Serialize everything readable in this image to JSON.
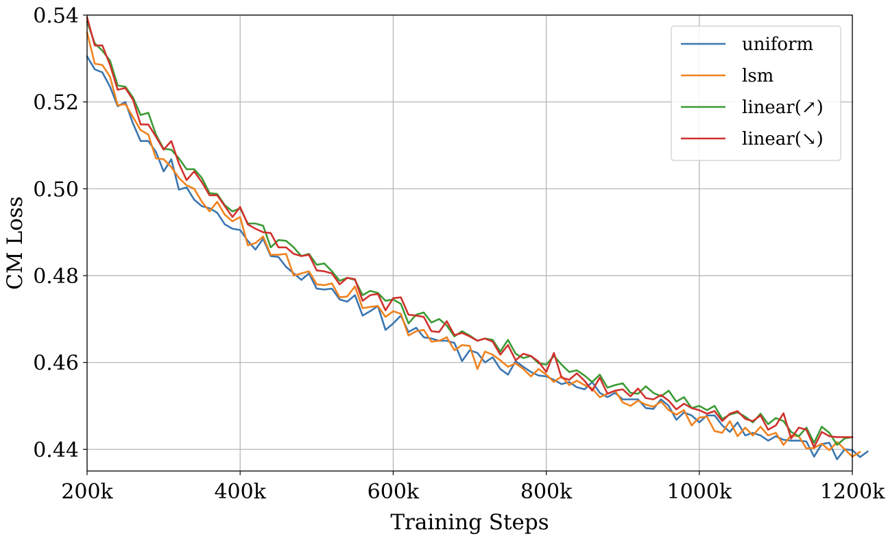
{
  "chart_data": {
    "type": "line",
    "title": "",
    "xlabel": "Training Steps",
    "ylabel": "CM Loss",
    "xlim": [
      200000,
      1200000
    ],
    "ylim": [
      0.435,
      0.54
    ],
    "xticks": [
      200000,
      400000,
      600000,
      800000,
      1000000,
      1200000
    ],
    "xtick_labels": [
      "200k",
      "400k",
      "600k",
      "800k",
      "1000k",
      "1200k"
    ],
    "yticks": [
      0.44,
      0.46,
      0.48,
      0.5,
      0.52,
      0.54
    ],
    "ytick_labels": [
      "0.44",
      "0.46",
      "0.48",
      "0.50",
      "0.52",
      "0.54"
    ],
    "grid": true,
    "legend_position": "top-right",
    "x_start": 200000,
    "x_step": 10000,
    "series": [
      {
        "name": "uniform",
        "color": "#3a76b0",
        "values": [
          0.5305,
          0.5275,
          0.5268,
          0.5235,
          0.519,
          0.52,
          0.515,
          0.511,
          0.511,
          0.5085,
          0.504,
          0.5068,
          0.4998,
          0.5003,
          0.4975,
          0.496,
          0.4955,
          0.4945,
          0.4918,
          0.4908,
          0.4905,
          0.488,
          0.486,
          0.4885,
          0.4845,
          0.4843,
          0.482,
          0.4805,
          0.479,
          0.4805,
          0.477,
          0.4768,
          0.477,
          0.4745,
          0.474,
          0.4755,
          0.4708,
          0.4718,
          0.473,
          0.4675,
          0.469,
          0.4708,
          0.467,
          0.468,
          0.4658,
          0.4655,
          0.465,
          0.465,
          0.4645,
          0.4603,
          0.4628,
          0.4622,
          0.46,
          0.4612,
          0.4585,
          0.4572,
          0.4603,
          0.459,
          0.4578,
          0.457,
          0.4568,
          0.456,
          0.455,
          0.4555,
          0.4543,
          0.4538,
          0.4555,
          0.453,
          0.452,
          0.453,
          0.4515,
          0.4515,
          0.4515,
          0.4495,
          0.4493,
          0.4515,
          0.45,
          0.4468,
          0.4485,
          0.4478,
          0.4462,
          0.4478,
          0.4478,
          0.4455,
          0.444,
          0.4462,
          0.4432,
          0.4438,
          0.4432,
          0.442,
          0.443,
          0.4422,
          0.442,
          0.442,
          0.4418,
          0.4383,
          0.4412,
          0.4415,
          0.4377,
          0.44,
          0.4398,
          0.4382,
          0.4395
        ]
      },
      {
        "name": "lsm",
        "color": "#f0821e",
        "values": [
          0.536,
          0.5288,
          0.5285,
          0.5258,
          0.5192,
          0.5195,
          0.5165,
          0.5135,
          0.5125,
          0.507,
          0.5068,
          0.505,
          0.5025,
          0.5008,
          0.5,
          0.497,
          0.4948,
          0.497,
          0.494,
          0.4925,
          0.4935,
          0.487,
          0.4875,
          0.489,
          0.4848,
          0.4848,
          0.485,
          0.48,
          0.4805,
          0.481,
          0.478,
          0.4778,
          0.4782,
          0.475,
          0.4752,
          0.4775,
          0.4725,
          0.4728,
          0.473,
          0.4705,
          0.4718,
          0.4712,
          0.4662,
          0.4672,
          0.4675,
          0.4648,
          0.465,
          0.4658,
          0.4628,
          0.464,
          0.4638,
          0.4585,
          0.4625,
          0.4618,
          0.4605,
          0.459,
          0.4598,
          0.4585,
          0.4568,
          0.4585,
          0.4572,
          0.4555,
          0.4568,
          0.4548,
          0.4558,
          0.4548,
          0.454,
          0.452,
          0.4528,
          0.4535,
          0.4508,
          0.45,
          0.4512,
          0.4503,
          0.4498,
          0.451,
          0.449,
          0.448,
          0.449,
          0.4455,
          0.4473,
          0.4475,
          0.4442,
          0.4438,
          0.4465,
          0.443,
          0.445,
          0.4432,
          0.4452,
          0.4432,
          0.4438,
          0.441,
          0.4432,
          0.443,
          0.4402,
          0.4403,
          0.4413,
          0.4398,
          0.4417,
          0.44,
          0.4383,
          0.4394
        ]
      },
      {
        "name": "linear(↗)",
        "color": "#3a9a34",
        "values": [
          0.5385,
          0.5335,
          0.5318,
          0.5295,
          0.5238,
          0.5235,
          0.521,
          0.517,
          0.5175,
          0.5125,
          0.5092,
          0.509,
          0.507,
          0.5045,
          0.5045,
          0.5025,
          0.499,
          0.4988,
          0.4962,
          0.4948,
          0.4955,
          0.492,
          0.492,
          0.4915,
          0.4865,
          0.4882,
          0.488,
          0.4865,
          0.4845,
          0.485,
          0.4825,
          0.4828,
          0.481,
          0.4788,
          0.4795,
          0.479,
          0.4755,
          0.4765,
          0.476,
          0.4742,
          0.4745,
          0.4735,
          0.469,
          0.471,
          0.4715,
          0.4692,
          0.47,
          0.4685,
          0.466,
          0.4672,
          0.4662,
          0.465,
          0.4655,
          0.4652,
          0.4625,
          0.4652,
          0.462,
          0.461,
          0.4615,
          0.4598,
          0.4595,
          0.4615,
          0.4595,
          0.4578,
          0.4582,
          0.457,
          0.4555,
          0.4572,
          0.4542,
          0.4548,
          0.4552,
          0.453,
          0.4528,
          0.4545,
          0.453,
          0.4522,
          0.4535,
          0.451,
          0.452,
          0.4495,
          0.45,
          0.449,
          0.45,
          0.447,
          0.448,
          0.4485,
          0.4475,
          0.4462,
          0.4482,
          0.4458,
          0.4472,
          0.4465,
          0.444,
          0.443,
          0.445,
          0.4415,
          0.4452,
          0.4438,
          0.441,
          0.4425,
          0.4428
        ]
      },
      {
        "name": "linear(↘)",
        "color": "#d0312d",
        "values": [
          0.5395,
          0.533,
          0.533,
          0.5285,
          0.5228,
          0.5232,
          0.5205,
          0.5148,
          0.5148,
          0.512,
          0.509,
          0.511,
          0.5058,
          0.502,
          0.504,
          0.5015,
          0.4985,
          0.4985,
          0.496,
          0.4935,
          0.4958,
          0.4918,
          0.4908,
          0.49,
          0.4898,
          0.4865,
          0.4865,
          0.485,
          0.4845,
          0.4848,
          0.4812,
          0.481,
          0.4805,
          0.478,
          0.4795,
          0.4792,
          0.4742,
          0.4755,
          0.4758,
          0.472,
          0.4748,
          0.475,
          0.471,
          0.4708,
          0.4705,
          0.4672,
          0.467,
          0.4695,
          0.4663,
          0.4668,
          0.466,
          0.465,
          0.4655,
          0.4648,
          0.4618,
          0.464,
          0.4605,
          0.462,
          0.4615,
          0.4602,
          0.4578,
          0.4622,
          0.4565,
          0.456,
          0.4575,
          0.4558,
          0.4535,
          0.4565,
          0.4528,
          0.4535,
          0.4538,
          0.4522,
          0.454,
          0.4518,
          0.4515,
          0.4525,
          0.4512,
          0.4492,
          0.4505,
          0.4495,
          0.449,
          0.4482,
          0.4488,
          0.4465,
          0.4482,
          0.4488,
          0.447,
          0.4465,
          0.4478,
          0.4445,
          0.4455,
          0.4483,
          0.4425,
          0.445,
          0.4445,
          0.4405,
          0.444,
          0.443,
          0.4428,
          0.4428,
          0.4428
        ]
      }
    ]
  }
}
